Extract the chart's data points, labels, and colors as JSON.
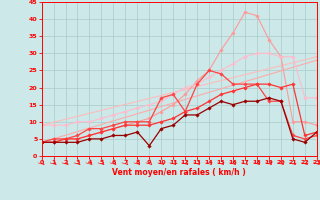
{
  "xlabel": "Vent moyen/en rafales ( km/h )",
  "xlim": [
    0,
    23
  ],
  "ylim": [
    0,
    45
  ],
  "yticks": [
    0,
    5,
    10,
    15,
    20,
    25,
    30,
    35,
    40,
    45
  ],
  "xticks": [
    0,
    1,
    2,
    3,
    4,
    5,
    6,
    7,
    8,
    9,
    10,
    11,
    12,
    13,
    14,
    15,
    16,
    17,
    18,
    19,
    20,
    21,
    22,
    23
  ],
  "bg_color": "#cce8e8",
  "grid_color": "#aacccc",
  "lines": [
    {
      "x": [
        0,
        23
      ],
      "y": [
        4,
        28
      ],
      "color": "#ffaaaa",
      "lw": 0.8,
      "marker": null
    },
    {
      "x": [
        0,
        23
      ],
      "y": [
        9,
        29
      ],
      "color": "#ffbbbb",
      "lw": 0.8,
      "marker": null
    },
    {
      "x": [
        0,
        1,
        2,
        3,
        4,
        5,
        6,
        7,
        8,
        9,
        10,
        11,
        12,
        13,
        14,
        15,
        16,
        17,
        18,
        19,
        20,
        21,
        22,
        23
      ],
      "y": [
        4,
        4,
        5,
        5,
        6,
        7,
        8,
        9,
        10,
        11,
        13,
        15,
        18,
        22,
        25,
        31,
        36,
        42,
        41,
        34,
        29,
        10,
        10,
        9
      ],
      "color": "#ff9999",
      "lw": 0.8,
      "marker": "D",
      "ms": 1.8
    },
    {
      "x": [
        0,
        1,
        2,
        3,
        4,
        5,
        6,
        7,
        8,
        9,
        10,
        11,
        12,
        13,
        14,
        15,
        16,
        17,
        18,
        19,
        20,
        21,
        22,
        23
      ],
      "y": [
        9,
        9,
        9,
        10,
        10,
        11,
        12,
        13,
        14,
        15,
        16,
        18,
        20,
        21,
        23,
        25,
        27,
        29,
        30,
        30,
        29,
        29,
        17,
        17
      ],
      "color": "#ffbbcc",
      "lw": 0.8,
      "marker": "D",
      "ms": 1.8
    },
    {
      "x": [
        0,
        1,
        2,
        3,
        4,
        5,
        6,
        7,
        8,
        9,
        10,
        11,
        12,
        13,
        14,
        15,
        16,
        17,
        18,
        19,
        20,
        21,
        22,
        23
      ],
      "y": [
        4,
        5,
        5,
        6,
        8,
        8,
        9,
        10,
        10,
        10,
        17,
        18,
        13,
        21,
        25,
        24,
        21,
        21,
        21,
        16,
        16,
        6,
        5,
        6
      ],
      "color": "#ff4444",
      "lw": 0.9,
      "marker": "D",
      "ms": 1.8
    },
    {
      "x": [
        0,
        1,
        2,
        3,
        4,
        5,
        6,
        7,
        8,
        9,
        10,
        11,
        12,
        13,
        14,
        15,
        16,
        17,
        18,
        19,
        20,
        21,
        22,
        23
      ],
      "y": [
        4,
        4,
        5,
        5,
        6,
        7,
        8,
        9,
        9,
        9,
        10,
        11,
        13,
        14,
        16,
        18,
        19,
        20,
        21,
        21,
        20,
        21,
        6,
        7
      ],
      "color": "#ff3333",
      "lw": 0.9,
      "marker": "D",
      "ms": 1.8
    },
    {
      "x": [
        0,
        1,
        2,
        3,
        4,
        5,
        6,
        7,
        8,
        9,
        10,
        11,
        12,
        13,
        14,
        15,
        16,
        17,
        18,
        19,
        20,
        21,
        22,
        23
      ],
      "y": [
        4,
        4,
        4,
        4,
        5,
        5,
        6,
        6,
        7,
        3,
        8,
        9,
        12,
        12,
        14,
        16,
        15,
        16,
        16,
        17,
        16,
        5,
        4,
        7
      ],
      "color": "#990000",
      "lw": 0.9,
      "marker": "D",
      "ms": 1.8
    }
  ]
}
